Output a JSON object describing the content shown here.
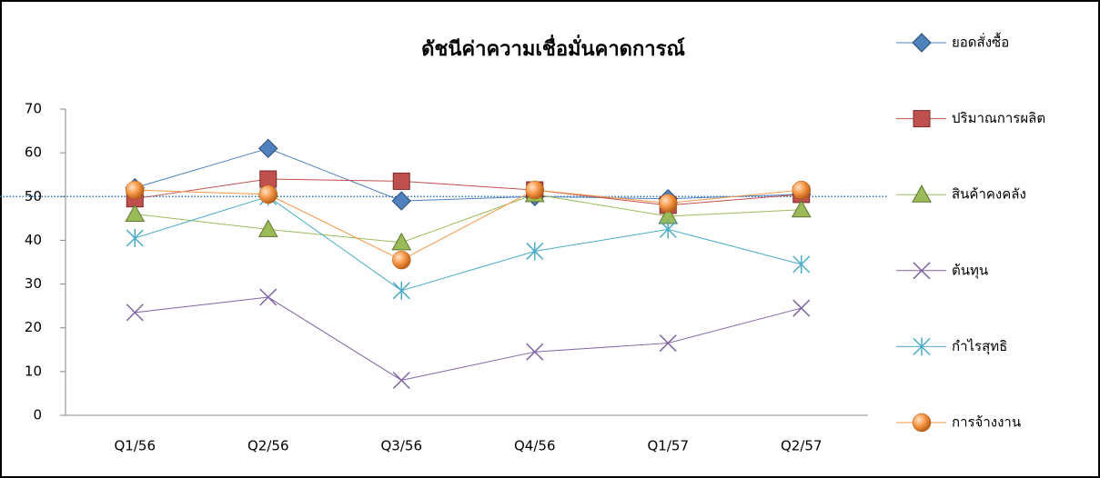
{
  "chart_data": {
    "type": "line",
    "title": "ดัชนีค่าความเชื่อมั่นคาดการณ์",
    "categories": [
      "Q1/56",
      "Q2/56",
      "Q3/56",
      "Q4/56",
      "Q1/57",
      "Q2/57"
    ],
    "series": [
      {
        "name": "ยอดสั่งซื้อ",
        "color": "#4f81bd",
        "marker": "diamond",
        "values": [
          52,
          61,
          49,
          50,
          49.5,
          50.5
        ]
      },
      {
        "name": "ปริมาณการผลิต",
        "color": "#c0504d",
        "marker": "square",
        "values": [
          49.5,
          54,
          53.5,
          51.5,
          48,
          50.5
        ]
      },
      {
        "name": "สินค้าคงคลัง",
        "color": "#9bbb59",
        "marker": "triangle",
        "values": [
          46,
          42.5,
          39.5,
          50.5,
          45.5,
          47
        ]
      },
      {
        "name": "ต้นทุน",
        "color": "#8064a2",
        "marker": "x",
        "values": [
          23.5,
          27,
          8,
          14.5,
          16.5,
          24.5
        ]
      },
      {
        "name": "กำไรสุทธิ",
        "color": "#4bacc6",
        "marker": "star",
        "values": [
          40.5,
          50,
          28.5,
          37.5,
          42.5,
          34.5
        ]
      },
      {
        "name": "การจ้างงาน",
        "color": "#f79646",
        "marker": "circle",
        "values": [
          51.5,
          50.5,
          35.5,
          51.5,
          48.5,
          51.5
        ]
      }
    ],
    "reference_line": 50,
    "ylim": [
      0,
      70
    ],
    "yticks": [
      0,
      10,
      20,
      30,
      40,
      50,
      60,
      70
    ],
    "legend": "right"
  }
}
